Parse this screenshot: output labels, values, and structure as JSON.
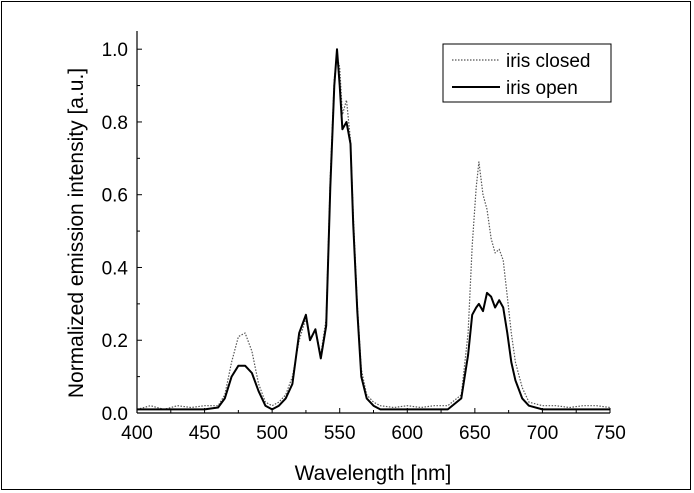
{
  "chart_data": {
    "type": "line",
    "xlabel": "Wavelength [nm]",
    "ylabel": "Normalized emission intensity [a.u.]",
    "xlim": [
      400,
      750
    ],
    "ylim": [
      0.0,
      1.05
    ],
    "xticks": [
      "400",
      "450",
      "500",
      "550",
      "600",
      "650",
      "700",
      "750"
    ],
    "yticks": [
      "0.0",
      "0.2",
      "0.4",
      "0.6",
      "0.8",
      "1.0"
    ],
    "grid": false,
    "legend_position": "top-right",
    "series": [
      {
        "name": "iris closed",
        "style": "dotted",
        "color": "#555555",
        "x": [
          400,
          410,
          420,
          430,
          440,
          450,
          460,
          465,
          470,
          475,
          480,
          485,
          490,
          495,
          500,
          505,
          510,
          515,
          520,
          525,
          528,
          532,
          536,
          540,
          543,
          546,
          548,
          550,
          552,
          555,
          558,
          560,
          563,
          566,
          570,
          575,
          580,
          590,
          600,
          610,
          620,
          630,
          640,
          645,
          648,
          651,
          653,
          656,
          659,
          662,
          665,
          668,
          671,
          674,
          677,
          680,
          685,
          690,
          700,
          710,
          720,
          730,
          740,
          750
        ],
        "y": [
          0.01,
          0.02,
          0.01,
          0.02,
          0.015,
          0.02,
          0.02,
          0.05,
          0.14,
          0.21,
          0.22,
          0.17,
          0.08,
          0.03,
          0.02,
          0.03,
          0.05,
          0.1,
          0.2,
          0.26,
          0.2,
          0.23,
          0.16,
          0.26,
          0.65,
          0.92,
          0.98,
          0.95,
          0.82,
          0.86,
          0.75,
          0.55,
          0.3,
          0.12,
          0.05,
          0.03,
          0.02,
          0.015,
          0.02,
          0.015,
          0.02,
          0.02,
          0.05,
          0.22,
          0.46,
          0.62,
          0.69,
          0.6,
          0.56,
          0.48,
          0.44,
          0.45,
          0.42,
          0.32,
          0.22,
          0.14,
          0.07,
          0.03,
          0.02,
          0.02,
          0.015,
          0.02,
          0.02,
          0.015
        ]
      },
      {
        "name": "iris open",
        "style": "solid",
        "color": "#000000",
        "x": [
          400,
          410,
          420,
          430,
          440,
          450,
          460,
          465,
          470,
          475,
          480,
          485,
          490,
          495,
          500,
          505,
          510,
          515,
          520,
          525,
          528,
          532,
          536,
          540,
          543,
          546,
          548,
          550,
          552,
          555,
          558,
          560,
          563,
          566,
          570,
          575,
          580,
          590,
          600,
          610,
          620,
          630,
          640,
          645,
          648,
          651,
          653,
          656,
          659,
          662,
          665,
          668,
          671,
          674,
          677,
          680,
          685,
          690,
          700,
          710,
          720,
          730,
          740,
          750
        ],
        "y": [
          0.01,
          0.01,
          0.01,
          0.01,
          0.01,
          0.01,
          0.015,
          0.04,
          0.1,
          0.13,
          0.13,
          0.11,
          0.06,
          0.02,
          0.01,
          0.02,
          0.04,
          0.08,
          0.22,
          0.27,
          0.2,
          0.23,
          0.15,
          0.24,
          0.62,
          0.9,
          1.0,
          0.9,
          0.78,
          0.8,
          0.74,
          0.52,
          0.28,
          0.1,
          0.04,
          0.02,
          0.01,
          0.01,
          0.01,
          0.01,
          0.01,
          0.01,
          0.04,
          0.16,
          0.27,
          0.29,
          0.3,
          0.28,
          0.33,
          0.32,
          0.29,
          0.31,
          0.29,
          0.22,
          0.14,
          0.09,
          0.04,
          0.02,
          0.01,
          0.01,
          0.01,
          0.01,
          0.01,
          0.01
        ]
      }
    ]
  }
}
